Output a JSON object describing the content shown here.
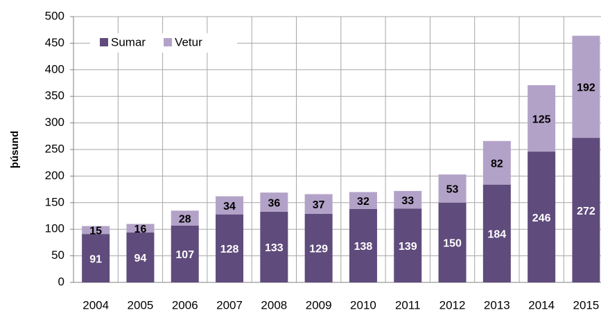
{
  "chart_data": {
    "type": "stacked_bar",
    "y_label": "þúsund",
    "categories": [
      "2004",
      "2005",
      "2006",
      "2007",
      "2008",
      "2009",
      "2010",
      "2011",
      "2012",
      "2013",
      "2014",
      "2015"
    ],
    "series": [
      {
        "name": "Sumar",
        "color": "#5f4b7c",
        "label_color": "#ffffff",
        "values": [
          91,
          94,
          107,
          128,
          133,
          129,
          138,
          139,
          150,
          184,
          246,
          272
        ]
      },
      {
        "name": "Vetur",
        "color": "#b3a2c8",
        "label_color": "#000000",
        "values": [
          15,
          16,
          28,
          34,
          36,
          37,
          32,
          33,
          53,
          82,
          125,
          192
        ]
      }
    ],
    "ylim": [
      0,
      500
    ],
    "yticks": [
      0,
      50,
      100,
      150,
      200,
      250,
      300,
      350,
      400,
      450,
      500
    ],
    "grid": true,
    "legend": "top-left"
  }
}
